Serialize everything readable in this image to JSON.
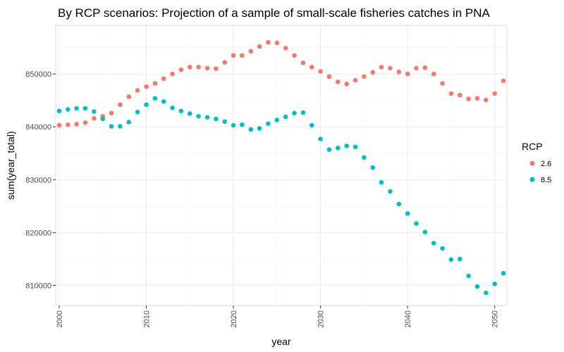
{
  "chart_data": {
    "type": "scatter",
    "title": "By RCP scenarios: Projection of a sample of small-scale fisheries catches in PNA",
    "xlabel": "year",
    "ylabel": "sum(year_total)",
    "xlim": [
      1999.6,
      2051.4
    ],
    "ylim": [
      806200,
      859200
    ],
    "x_ticks": [
      2000,
      2010,
      2020,
      2030,
      2040,
      2050
    ],
    "x_tick_labels": [
      "2000",
      "2010",
      "2020",
      "2030",
      "2040",
      "2050"
    ],
    "y_ticks": [
      810000,
      820000,
      830000,
      840000,
      850000
    ],
    "y_tick_labels": [
      "810000",
      "820000",
      "830000",
      "840000",
      "850000"
    ],
    "grid": true,
    "legend": {
      "title": "RCP",
      "position": "right"
    },
    "x": [
      2000,
      2001,
      2002,
      2003,
      2004,
      2005,
      2006,
      2007,
      2008,
      2009,
      2010,
      2011,
      2012,
      2013,
      2014,
      2015,
      2016,
      2017,
      2018,
      2019,
      2020,
      2021,
      2022,
      2023,
      2024,
      2025,
      2026,
      2027,
      2028,
      2029,
      2030,
      2031,
      2032,
      2033,
      2034,
      2035,
      2036,
      2037,
      2038,
      2039,
      2040,
      2041,
      2042,
      2043,
      2044,
      2045,
      2046,
      2047,
      2048,
      2049,
      2050,
      2051
    ],
    "series": [
      {
        "name": "2.6",
        "color": "#F8766D",
        "values": [
          840300,
          840400,
          840500,
          840800,
          841600,
          842000,
          842600,
          844200,
          845700,
          846900,
          847600,
          848200,
          849100,
          850000,
          850800,
          851300,
          851300,
          851100,
          851000,
          852200,
          853500,
          853500,
          854300,
          855200,
          856000,
          855900,
          854900,
          853500,
          852100,
          851300,
          850500,
          849500,
          848500,
          848100,
          848800,
          849500,
          850300,
          851300,
          851100,
          850400,
          850000,
          851100,
          851200,
          850000,
          848200,
          846300,
          846000,
          845300,
          845400,
          845100,
          846300,
          848700
        ]
      },
      {
        "name": "8.5",
        "color": "#00BFC4",
        "values": [
          843000,
          843300,
          843500,
          843500,
          842900,
          841500,
          840100,
          840100,
          840900,
          842800,
          844200,
          845400,
          844800,
          843600,
          843000,
          842500,
          842000,
          841800,
          841500,
          841000,
          840300,
          840400,
          839500,
          839700,
          840600,
          841300,
          841900,
          842600,
          842700,
          840300,
          837700,
          835700,
          836000,
          836400,
          836200,
          834200,
          832300,
          829500,
          827800,
          825400,
          823600,
          821700,
          820100,
          818000,
          817000,
          814900,
          815000,
          811800,
          809800,
          808600,
          810300,
          812300
        ]
      }
    ]
  }
}
